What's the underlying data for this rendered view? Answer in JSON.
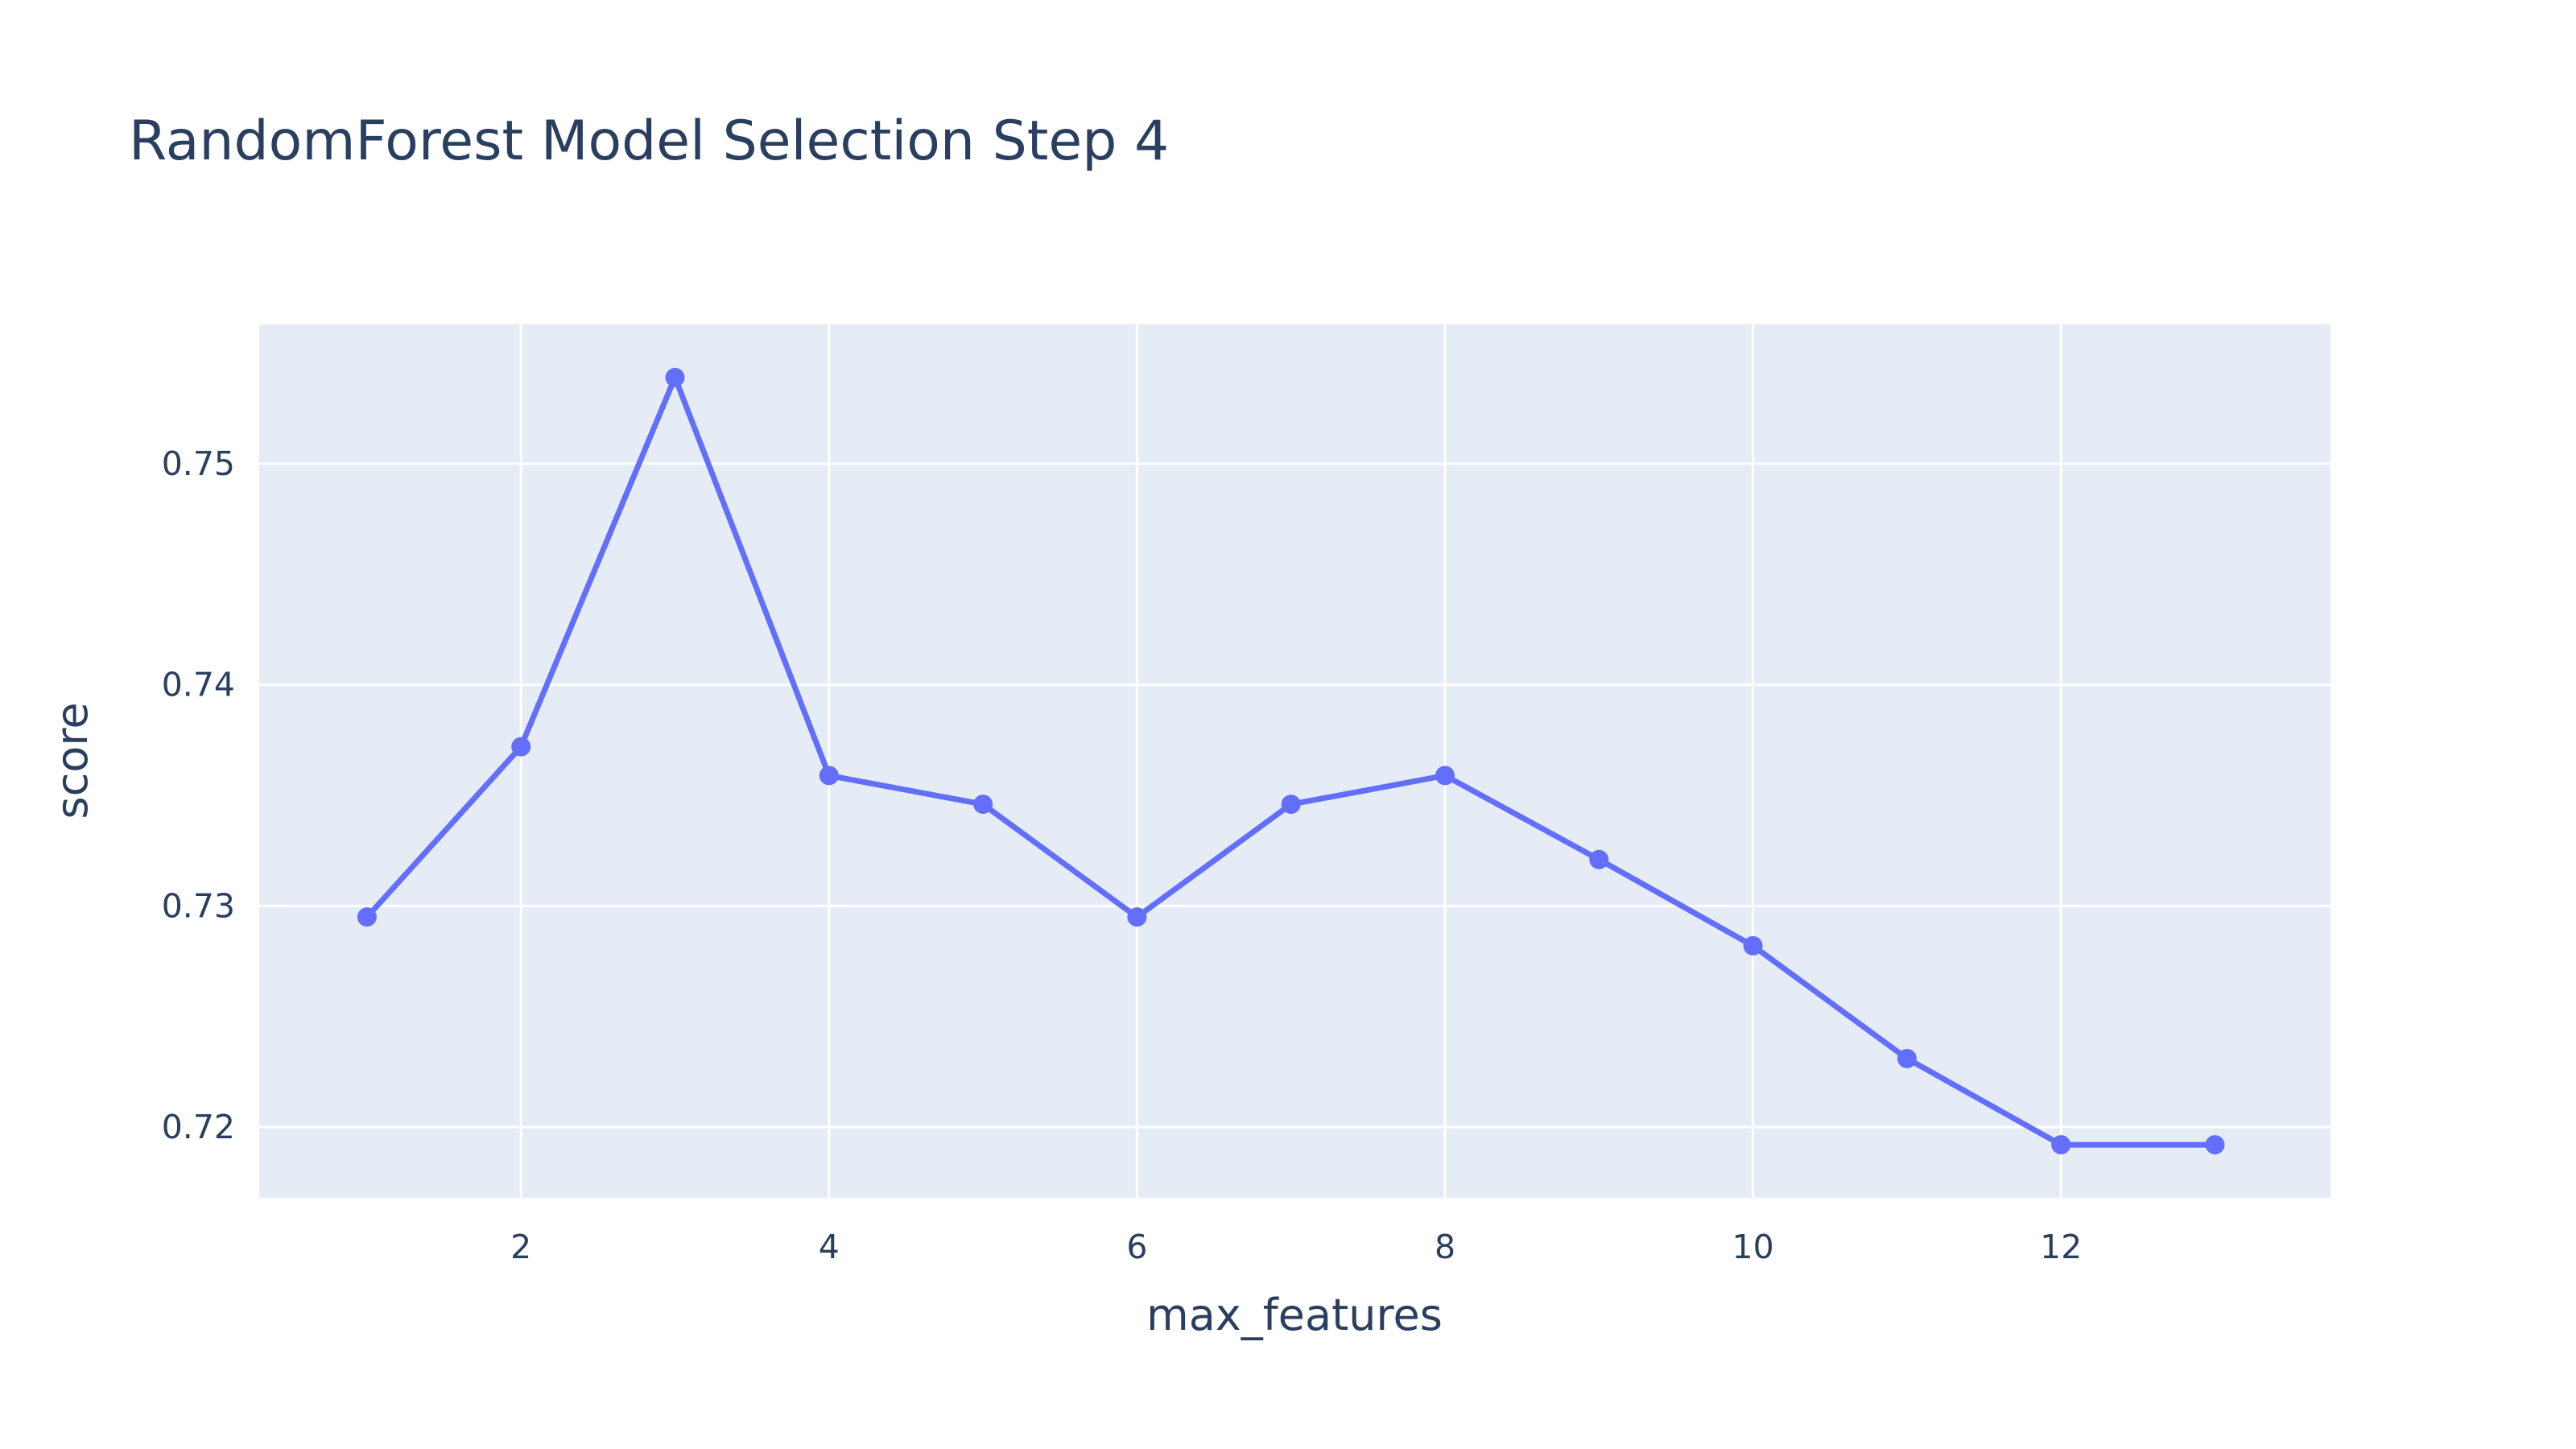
{
  "chart_data": {
    "type": "line",
    "title": "RandomForest Model Selection Step 4",
    "xlabel": "max_features",
    "ylabel": "score",
    "xlim": [
      0.3,
      13.75
    ],
    "ylim": [
      0.7168,
      0.7563
    ],
    "x_ticks": [
      2,
      4,
      6,
      8,
      10,
      12
    ],
    "x_tick_labels": [
      "2",
      "4",
      "6",
      "8",
      "10",
      "12"
    ],
    "y_ticks": [
      0.72,
      0.73,
      0.74,
      0.75
    ],
    "y_tick_labels": [
      "0.72",
      "0.73",
      "0.74",
      "0.75"
    ],
    "grid": true,
    "legend": "none",
    "series": [
      {
        "mode": "lines+markers",
        "x": [
          1,
          2,
          3,
          4,
          5,
          6,
          7,
          8,
          9,
          10,
          11,
          12,
          13
        ],
        "y": [
          0.7295,
          0.7372,
          0.7539,
          0.7359,
          0.7346,
          0.7295,
          0.7346,
          0.7359,
          0.7321,
          0.7282,
          0.7231,
          0.7192,
          0.7192
        ]
      }
    ]
  },
  "colors": {
    "plot_background": "#e5ecf6",
    "grid": "#ffffff",
    "line": "#636efa",
    "text": "#2a3f5f",
    "page_background": "#ffffff"
  }
}
